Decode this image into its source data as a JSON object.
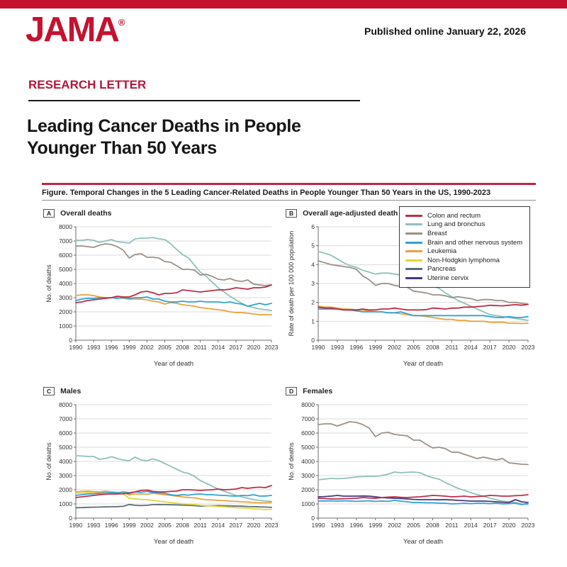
{
  "page": {
    "accent_red": "#C4122F"
  },
  "header": {
    "logo": "JAMA",
    "registered_mark": "®",
    "published": "Published online January 22, 2026",
    "section_label": "RESEARCH LETTER",
    "title_line1": "Leading Cancer Deaths in People",
    "title_line2": "Younger Than 50 Years"
  },
  "figure": {
    "caption": "Figure. Temporal Changes in the 5 Leading Cancer-Related Deaths in People Younger Than 50 Years in the US, 1990-2023"
  },
  "legend": {
    "position": "top-right",
    "items": [
      {
        "label": "Colon and rectum",
        "color": "#BE2D46"
      },
      {
        "label": "Lung and bronchus",
        "color": "#8FC1B9"
      },
      {
        "label": "Breast",
        "color": "#9A9189"
      },
      {
        "label": "Brain and other nervous system",
        "color": "#2FA3D4"
      },
      {
        "label": "Leukemia",
        "color": "#E7A33C"
      },
      {
        "label": "Non-Hodgkin lymphoma",
        "color": "#E0D63A"
      },
      {
        "label": "Pancreas",
        "color": "#5E6E77"
      },
      {
        "label": "Uterine cervix",
        "color": "#4A3680"
      }
    ]
  },
  "chart_data": [
    {
      "type": "line",
      "panel_label": "A",
      "title": "Overall deaths",
      "xlabel": "Year of death",
      "ylabel": "No. of deaths",
      "x_range": [
        1990,
        2023
      ],
      "xticks": [
        1990,
        1993,
        1996,
        1999,
        2002,
        2005,
        2008,
        2011,
        2014,
        2017,
        2020,
        2023
      ],
      "ylim": [
        0,
        8000
      ],
      "yticks": [
        0,
        1000,
        2000,
        3000,
        4000,
        5000,
        6000,
        7000,
        8000
      ],
      "grid": "horizontal",
      "legend_shown": false,
      "series": [
        {
          "name": "Lung and bronchus",
          "values": [
            7050,
            7050,
            7100,
            7050,
            6900,
            7000,
            7100,
            6950,
            6900,
            6850,
            7150,
            7200,
            7200,
            7250,
            7150,
            7100,
            6800,
            6400,
            6050,
            5800,
            5300,
            4800,
            4500,
            4100,
            3700,
            3400,
            3100,
            2850,
            2600,
            2400,
            2300,
            2200,
            2150,
            2100
          ]
        },
        {
          "name": "Breast",
          "values": [
            6650,
            6650,
            6600,
            6550,
            6700,
            6800,
            6750,
            6600,
            6350,
            5800,
            6050,
            6100,
            5850,
            5850,
            5800,
            5550,
            5500,
            5250,
            5000,
            5000,
            4950,
            4600,
            4650,
            4500,
            4300,
            4250,
            4350,
            4200,
            4150,
            4250,
            3950,
            3900,
            3850,
            3900
          ]
        },
        {
          "name": "Leukemia",
          "values": [
            3150,
            3200,
            3200,
            3150,
            3050,
            3000,
            3000,
            3000,
            2950,
            2900,
            2900,
            2900,
            2850,
            2750,
            2700,
            2550,
            2650,
            2600,
            2500,
            2450,
            2400,
            2300,
            2250,
            2200,
            2150,
            2100,
            2000,
            1950,
            1950,
            1900,
            1850,
            1800,
            1800,
            1800
          ]
        },
        {
          "name": "Brain and other nervous system",
          "values": [
            2800,
            2900,
            2950,
            2950,
            3000,
            3000,
            3000,
            2950,
            3000,
            2950,
            3000,
            3000,
            3050,
            2900,
            2900,
            2750,
            2700,
            2700,
            2750,
            2700,
            2700,
            2750,
            2700,
            2700,
            2700,
            2650,
            2700,
            2600,
            2550,
            2400,
            2500,
            2600,
            2500,
            2600
          ]
        },
        {
          "name": "Colon and rectum",
          "values": [
            2650,
            2700,
            2800,
            2850,
            2900,
            2950,
            3000,
            3100,
            3050,
            3050,
            3200,
            3400,
            3450,
            3350,
            3200,
            3300,
            3300,
            3350,
            3550,
            3500,
            3450,
            3400,
            3450,
            3500,
            3550,
            3550,
            3600,
            3700,
            3650,
            3600,
            3700,
            3700,
            3750,
            3900
          ]
        }
      ]
    },
    {
      "type": "line",
      "panel_label": "B",
      "title": "Overall age-adjusted death rate",
      "xlabel": "Year of death",
      "ylabel": "Rate of death per 100 000 population",
      "x_range": [
        1990,
        2023
      ],
      "xticks": [
        1990,
        1993,
        1996,
        1999,
        2002,
        2005,
        2008,
        2011,
        2014,
        2017,
        2020,
        2023
      ],
      "ylim": [
        0,
        6
      ],
      "yticks": [
        0,
        1,
        2,
        3,
        4,
        5,
        6
      ],
      "grid": "horizontal",
      "legend_shown": true,
      "series": [
        {
          "name": "Lung and bronchus",
          "values": [
            4.7,
            4.6,
            4.5,
            4.3,
            4.1,
            3.95,
            3.85,
            3.7,
            3.6,
            3.5,
            3.55,
            3.55,
            3.5,
            3.45,
            3.4,
            3.3,
            3.2,
            3.0,
            2.85,
            2.75,
            2.5,
            2.3,
            2.1,
            1.95,
            1.8,
            1.65,
            1.5,
            1.35,
            1.3,
            1.25,
            1.2,
            1.15,
            1.1,
            1.05
          ]
        },
        {
          "name": "Breast",
          "values": [
            4.2,
            4.1,
            4.0,
            3.95,
            3.9,
            3.85,
            3.75,
            3.4,
            3.2,
            2.9,
            3.0,
            3.0,
            2.9,
            2.85,
            2.8,
            2.6,
            2.55,
            2.5,
            2.4,
            2.4,
            2.35,
            2.25,
            2.3,
            2.25,
            2.2,
            2.1,
            2.15,
            2.15,
            2.1,
            2.1,
            2.0,
            2.0,
            1.95,
            1.9
          ]
        },
        {
          "name": "Leukemia",
          "values": [
            1.8,
            1.75,
            1.75,
            1.7,
            1.65,
            1.65,
            1.6,
            1.6,
            1.55,
            1.5,
            1.5,
            1.45,
            1.45,
            1.4,
            1.35,
            1.3,
            1.3,
            1.25,
            1.2,
            1.15,
            1.1,
            1.1,
            1.05,
            1.05,
            1.0,
            1.0,
            1.0,
            0.95,
            0.95,
            0.95,
            0.9,
            0.9,
            0.88,
            0.9
          ]
        },
        {
          "name": "Brain and other nervous system",
          "values": [
            1.65,
            1.65,
            1.65,
            1.65,
            1.6,
            1.6,
            1.55,
            1.5,
            1.5,
            1.5,
            1.5,
            1.45,
            1.45,
            1.5,
            1.4,
            1.3,
            1.3,
            1.3,
            1.3,
            1.3,
            1.3,
            1.3,
            1.3,
            1.3,
            1.3,
            1.3,
            1.3,
            1.25,
            1.2,
            1.2,
            1.25,
            1.2,
            1.2,
            1.25
          ]
        },
        {
          "name": "Colon and rectum",
          "values": [
            1.75,
            1.7,
            1.7,
            1.65,
            1.6,
            1.6,
            1.6,
            1.65,
            1.6,
            1.6,
            1.65,
            1.65,
            1.7,
            1.65,
            1.6,
            1.6,
            1.6,
            1.62,
            1.7,
            1.68,
            1.65,
            1.7,
            1.7,
            1.75,
            1.75,
            1.78,
            1.8,
            1.85,
            1.83,
            1.82,
            1.85,
            1.88,
            1.85,
            1.9
          ]
        }
      ]
    },
    {
      "type": "line",
      "panel_label": "C",
      "title": "Males",
      "xlabel": "Year of death",
      "ylabel": "No. of deaths",
      "x_range": [
        1990,
        2023
      ],
      "xticks": [
        1990,
        1993,
        1996,
        1999,
        2002,
        2005,
        2008,
        2011,
        2014,
        2017,
        2020,
        2023
      ],
      "ylim": [
        0,
        8000
      ],
      "yticks": [
        0,
        1000,
        2000,
        3000,
        4000,
        5000,
        6000,
        7000,
        8000
      ],
      "grid": "horizontal",
      "legend_shown": false,
      "series": [
        {
          "name": "Lung and bronchus",
          "values": [
            4400,
            4380,
            4350,
            4350,
            4150,
            4200,
            4330,
            4200,
            4100,
            4050,
            4300,
            4100,
            4050,
            4180,
            4050,
            3850,
            3650,
            3450,
            3250,
            3150,
            2950,
            2650,
            2450,
            2250,
            2050,
            1900,
            1750,
            1600,
            1500,
            1400,
            1300,
            1250,
            1200,
            1180
          ]
        },
        {
          "name": "Pancreas",
          "values": [
            730,
            740,
            760,
            770,
            780,
            790,
            800,
            810,
            830,
            960,
            900,
            880,
            900,
            950,
            960,
            950,
            940,
            930,
            920,
            900,
            880,
            840,
            860,
            870,
            880,
            870,
            860,
            850,
            840,
            820,
            810,
            790,
            780,
            760
          ]
        },
        {
          "name": "Non-Hodgkin lymphoma",
          "values": [
            1750,
            1770,
            1800,
            1800,
            1780,
            1800,
            1780,
            1750,
            1700,
            1400,
            1350,
            1320,
            1300,
            1250,
            1200,
            1150,
            1100,
            1050,
            1000,
            980,
            950,
            900,
            870,
            850,
            820,
            800,
            770,
            740,
            720,
            700,
            650,
            630,
            600,
            620
          ]
        },
        {
          "name": "Leukemia",
          "values": [
            1850,
            1880,
            1900,
            1870,
            1850,
            1900,
            1850,
            1820,
            1800,
            1650,
            1700,
            1700,
            1680,
            1750,
            1700,
            1650,
            1600,
            1550,
            1500,
            1450,
            1430,
            1350,
            1300,
            1280,
            1250,
            1230,
            1200,
            1180,
            1150,
            1130,
            1100,
            1080,
            1080,
            1100
          ]
        },
        {
          "name": "Brain and other nervous system",
          "values": [
            1600,
            1650,
            1700,
            1720,
            1750,
            1780,
            1800,
            1780,
            1850,
            1800,
            1850,
            1820,
            1880,
            1800,
            1780,
            1750,
            1650,
            1600,
            1650,
            1620,
            1680,
            1700,
            1650,
            1650,
            1620,
            1600,
            1570,
            1550,
            1600,
            1580,
            1650,
            1550,
            1560,
            1600
          ]
        },
        {
          "name": "Colon and rectum",
          "values": [
            1450,
            1500,
            1550,
            1600,
            1650,
            1680,
            1700,
            1700,
            1720,
            1750,
            1850,
            1950,
            1980,
            1880,
            1850,
            1850,
            1880,
            1900,
            2000,
            2000,
            1980,
            1950,
            1980,
            2000,
            2050,
            2000,
            2020,
            2050,
            2150,
            2100,
            2150,
            2180,
            2150,
            2300
          ]
        }
      ]
    },
    {
      "type": "line",
      "panel_label": "D",
      "title": "Females",
      "xlabel": "Year of death",
      "ylabel": "No. of deaths",
      "x_range": [
        1990,
        2023
      ],
      "xticks": [
        1990,
        1993,
        1996,
        1999,
        2002,
        2005,
        2008,
        2011,
        2014,
        2017,
        2020,
        2023
      ],
      "ylim": [
        0,
        8000
      ],
      "yticks": [
        0,
        1000,
        2000,
        3000,
        4000,
        5000,
        6000,
        7000,
        8000
      ],
      "grid": "horizontal",
      "legend_shown": false,
      "series": [
        {
          "name": "Breast",
          "values": [
            6600,
            6650,
            6650,
            6500,
            6650,
            6800,
            6750,
            6600,
            6350,
            5750,
            6000,
            6050,
            5900,
            5850,
            5800,
            5500,
            5500,
            5200,
            4950,
            5000,
            4900,
            4650,
            4650,
            4500,
            4350,
            4200,
            4300,
            4200,
            4100,
            4200,
            3900,
            3850,
            3800,
            3780
          ]
        },
        {
          "name": "Lung and bronchus",
          "values": [
            2700,
            2750,
            2800,
            2780,
            2800,
            2850,
            2900,
            2930,
            2950,
            2950,
            3000,
            3100,
            3250,
            3200,
            3230,
            3250,
            3200,
            3000,
            2850,
            2750,
            2500,
            2300,
            2100,
            1950,
            1800,
            1650,
            1550,
            1400,
            1300,
            1200,
            1150,
            1100,
            1000,
            950
          ]
        },
        {
          "name": "Uterine cervix",
          "values": [
            1500,
            1520,
            1550,
            1600,
            1550,
            1550,
            1550,
            1560,
            1550,
            1500,
            1450,
            1420,
            1400,
            1380,
            1350,
            1320,
            1300,
            1300,
            1300,
            1290,
            1300,
            1280,
            1250,
            1230,
            1200,
            1200,
            1200,
            1180,
            1150,
            1120,
            1100,
            1300,
            1150,
            1100
          ]
        },
        {
          "name": "Brain and other nervous system",
          "values": [
            1200,
            1210,
            1220,
            1200,
            1220,
            1200,
            1180,
            1200,
            1220,
            1180,
            1200,
            1180,
            1250,
            1200,
            1150,
            1100,
            1100,
            1080,
            1080,
            1060,
            1050,
            1000,
            1020,
            1050,
            1020,
            1050,
            1050,
            1020,
            1050,
            1000,
            1020,
            1050,
            950,
            1050
          ]
        },
        {
          "name": "Colon and rectum",
          "values": [
            1400,
            1380,
            1350,
            1350,
            1370,
            1380,
            1400,
            1450,
            1420,
            1400,
            1450,
            1480,
            1500,
            1470,
            1450,
            1480,
            1500,
            1550,
            1600,
            1580,
            1550,
            1500,
            1520,
            1550,
            1500,
            1520,
            1550,
            1600,
            1580,
            1550,
            1550,
            1580,
            1600,
            1650
          ]
        }
      ]
    }
  ]
}
